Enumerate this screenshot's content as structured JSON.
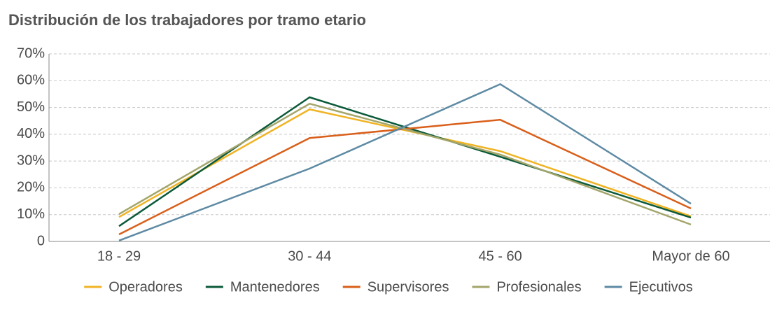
{
  "chart_data": {
    "type": "line",
    "title": "Distribución de los trabajadores por tramo etario",
    "categories": [
      "18 - 29",
      "30 - 44",
      "45 - 60",
      "Mayor de 60"
    ],
    "series": [
      {
        "name": "Operadores",
        "color": "#f0b323",
        "values": [
          9.1,
          49.3,
          33.7,
          9.4
        ]
      },
      {
        "name": "Mantenedores",
        "color": "#0b5a3a",
        "values": [
          5.7,
          53.8,
          31.6,
          8.9
        ]
      },
      {
        "name": "Supervisores",
        "color": "#d95f1a",
        "values": [
          2.6,
          38.6,
          45.4,
          12.3
        ]
      },
      {
        "name": "Profesionales",
        "color": "#a3a56a",
        "values": [
          10.2,
          51.4,
          32.4,
          6.3
        ]
      },
      {
        "name": "Ejecutivos",
        "color": "#5e8aa3",
        "values": [
          0.3,
          27.2,
          58.7,
          14.1
        ]
      }
    ],
    "ylim": [
      0,
      70
    ],
    "yticks": [
      0,
      {
        "value": 10,
        "label": "10%"
      },
      {
        "value": 20,
        "label": "20%"
      },
      {
        "value": 30,
        "label": "30%"
      },
      {
        "value": 40,
        "label": "40%"
      },
      {
        "value": 50,
        "label": "50%"
      },
      {
        "value": 60,
        "label": "60%"
      },
      {
        "value": 70,
        "label": "70%"
      }
    ],
    "grid": true,
    "legend": "bottom"
  }
}
